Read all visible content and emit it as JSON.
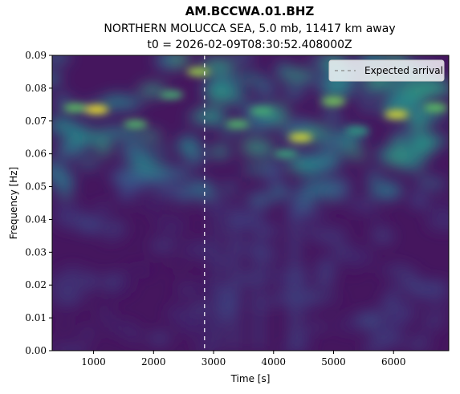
{
  "chart_data": {
    "type": "heatmap",
    "title": "AM.BCCWA.01.BHZ",
    "subtitle_line1": "NORTHERN MOLUCCA SEA, 5.0 mb, 11417 km away",
    "subtitle_line2": "t0 = 2026-02-09T08:30:52.408000Z",
    "xlabel": "Time [s]",
    "ylabel": "Frequency [Hz]",
    "xlim": [
      310,
      6920
    ],
    "ylim": [
      0.0,
      0.09
    ],
    "x_ticks": [
      1000,
      2000,
      3000,
      4000,
      5000,
      6000
    ],
    "x_tick_labels": [
      "1000",
      "2000",
      "3000",
      "4000",
      "5000",
      "6000"
    ],
    "y_ticks": [
      0.0,
      0.01,
      0.02,
      0.03,
      0.04,
      0.05,
      0.06,
      0.07,
      0.08,
      0.09
    ],
    "y_tick_labels": [
      "0.00",
      "0.01",
      "0.02",
      "0.03",
      "0.04",
      "0.05",
      "0.06",
      "0.07",
      "0.08",
      "0.09"
    ],
    "colormap": "viridis",
    "expected_arrival_time": 2850,
    "expected_arrival_color": "#ffffff",
    "legend": {
      "entries": [
        "Expected arrival"
      ],
      "placement": "top-right"
    },
    "hotspots": [
      {
        "t": 1050,
        "f": 0.0735,
        "amp": 1.0
      },
      {
        "t": 700,
        "f": 0.074,
        "amp": 0.75
      },
      {
        "t": 2750,
        "f": 0.085,
        "amp": 0.85
      },
      {
        "t": 4450,
        "f": 0.065,
        "amp": 0.95
      },
      {
        "t": 6050,
        "f": 0.072,
        "amp": 0.95
      },
      {
        "t": 5000,
        "f": 0.076,
        "amp": 0.8
      },
      {
        "t": 3400,
        "f": 0.069,
        "amp": 0.7
      },
      {
        "t": 3800,
        "f": 0.073,
        "amp": 0.65
      },
      {
        "t": 1700,
        "f": 0.069,
        "amp": 0.7
      },
      {
        "t": 2300,
        "f": 0.078,
        "amp": 0.65
      },
      {
        "t": 6700,
        "f": 0.074,
        "amp": 0.75
      },
      {
        "t": 4200,
        "f": 0.06,
        "amp": 0.6
      },
      {
        "t": 5400,
        "f": 0.067,
        "amp": 0.55
      }
    ]
  }
}
